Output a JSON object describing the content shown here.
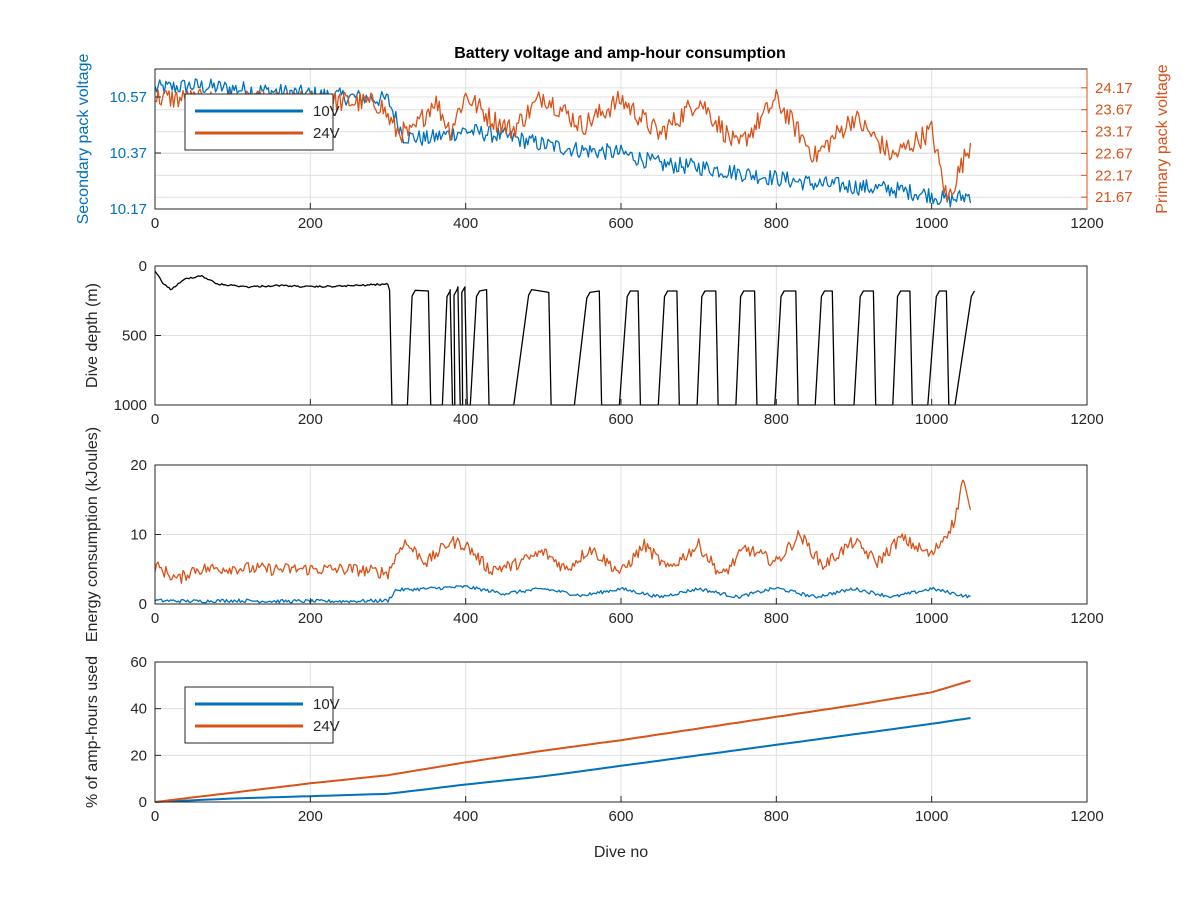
{
  "figure": {
    "title": "Battery voltage and amp-hour consumption",
    "colors": {
      "series_10v": "#0072BD",
      "series_24v": "#D95319",
      "depth": "#000000",
      "grid": "#e0e0e0",
      "axis": "#262626"
    }
  },
  "chart_data": [
    {
      "type": "line",
      "title": "Battery voltage and amp-hour consumption",
      "xlabel": "",
      "ylabel": "Secondary pack voltage",
      "ylabel_right": "Primary pack voltage",
      "xlim": [
        0,
        1200
      ],
      "xticks": [
        "0",
        "200",
        "400",
        "600",
        "800",
        "1000",
        "1200"
      ],
      "ylim": [
        10.17,
        10.67
      ],
      "yticks": [
        "10.17",
        "10.37",
        "10.57"
      ],
      "ylim_right": [
        21.4,
        24.6
      ],
      "yticks_right": [
        "21.67",
        "22.17",
        "22.67",
        "23.17",
        "23.67",
        "24.17"
      ],
      "grid": true,
      "legend": {
        "placement": "top-left",
        "entries": [
          "10V",
          "24V"
        ]
      },
      "series": [
        {
          "name": "10V",
          "axis": "left",
          "color": "#0072BD",
          "x": [
            0,
            50,
            100,
            150,
            200,
            250,
            300,
            320,
            350,
            400,
            450,
            500,
            550,
            600,
            650,
            700,
            750,
            800,
            850,
            900,
            950,
            1000,
            1020,
            1050
          ],
          "y": [
            10.6,
            10.61,
            10.6,
            10.59,
            10.58,
            10.57,
            10.56,
            10.43,
            10.42,
            10.45,
            10.43,
            10.4,
            10.38,
            10.37,
            10.33,
            10.32,
            10.3,
            10.28,
            10.26,
            10.25,
            10.24,
            10.22,
            10.2,
            10.22
          ]
        },
        {
          "name": "24V",
          "axis": "right",
          "color": "#D95319",
          "x": [
            0,
            50,
            100,
            150,
            200,
            250,
            290,
            310,
            330,
            360,
            380,
            400,
            430,
            460,
            500,
            550,
            600,
            650,
            700,
            750,
            800,
            850,
            900,
            950,
            1000,
            1020,
            1050
          ],
          "y": [
            23.95,
            23.9,
            23.85,
            23.85,
            23.85,
            23.85,
            23.8,
            23.2,
            23.1,
            23.9,
            23.2,
            24.0,
            23.5,
            23.2,
            24.0,
            23.3,
            23.9,
            23.1,
            23.9,
            22.8,
            23.9,
            22.6,
            23.5,
            22.6,
            23.2,
            21.6,
            22.9
          ]
        }
      ]
    },
    {
      "type": "line",
      "title": "",
      "xlabel": "",
      "ylabel": "Dive depth (m)",
      "xlim": [
        0,
        1200
      ],
      "xticks": [
        "0",
        "200",
        "400",
        "600",
        "800",
        "1000",
        "1200"
      ],
      "ylim": [
        0,
        1000
      ],
      "y_reversed": true,
      "yticks": [
        "0",
        "500",
        "1000"
      ],
      "grid": true,
      "series": [
        {
          "name": "",
          "color": "#000000",
          "dive_profile": {
            "shallow_x": [
              0,
              10,
              20,
              40,
              60,
              80,
              120,
              160,
              200,
              240,
              280,
              300
            ],
            "shallow_y": [
              40,
              120,
              170,
              90,
              70,
              130,
              150,
              140,
              150,
              145,
              135,
              130
            ],
            "dives": [
              {
                "down": 305,
                "bottom_end": 325,
                "surface": 175,
                "up": 335
              },
              {
                "down": 355,
                "bottom_end": 370,
                "surface": 180,
                "up": 380
              },
              {
                "down": 383,
                "bottom_end": 386,
                "surface": 170,
                "up": 389
              },
              {
                "down": 393,
                "bottom_end": 396,
                "surface": 150,
                "up": 399
              },
              {
                "down": 402,
                "bottom_end": 406,
                "surface": 180,
                "up": 418
              },
              {
                "down": 430,
                "bottom_end": 462,
                "surface": 170,
                "up": 485
              },
              {
                "down": 510,
                "bottom_end": 540,
                "surface": 190,
                "up": 560
              },
              {
                "down": 575,
                "bottom_end": 598,
                "surface": 180,
                "up": 612
              },
              {
                "down": 625,
                "bottom_end": 648,
                "surface": 180,
                "up": 660
              },
              {
                "down": 675,
                "bottom_end": 698,
                "surface": 180,
                "up": 708
              },
              {
                "down": 725,
                "bottom_end": 748,
                "surface": 180,
                "up": 758
              },
              {
                "down": 775,
                "bottom_end": 798,
                "surface": 180,
                "up": 810
              },
              {
                "down": 828,
                "bottom_end": 850,
                "surface": 180,
                "up": 862
              },
              {
                "down": 875,
                "bottom_end": 900,
                "surface": 180,
                "up": 912
              },
              {
                "down": 928,
                "bottom_end": 950,
                "surface": 180,
                "up": 960
              },
              {
                "down": 975,
                "bottom_end": 995,
                "surface": 180,
                "up": 1010
              },
              {
                "down": 1022,
                "bottom_end": 1030,
                "surface": 180,
                "up": 1055
              }
            ],
            "final_x": 1055,
            "final_y": 180
          }
        }
      ]
    },
    {
      "type": "line",
      "title": "",
      "xlabel": "",
      "ylabel": "Energy consumption (kJoules)",
      "xlim": [
        0,
        1200
      ],
      "xticks": [
        "0",
        "200",
        "400",
        "600",
        "800",
        "1000",
        "1200"
      ],
      "ylim": [
        0,
        20
      ],
      "yticks": [
        "0",
        "10",
        "20"
      ],
      "grid": true,
      "series": [
        {
          "name": "10V",
          "color": "#0072BD",
          "x": [
            0,
            50,
            100,
            150,
            200,
            250,
            300,
            310,
            350,
            400,
            450,
            500,
            550,
            600,
            650,
            700,
            750,
            800,
            850,
            900,
            950,
            1000,
            1050
          ],
          "y": [
            0.5,
            0.4,
            0.5,
            0.4,
            0.4,
            0.4,
            0.5,
            2.0,
            2.2,
            2.5,
            1.5,
            2.2,
            1.2,
            2.2,
            1.0,
            2.2,
            1.0,
            2.3,
            1.0,
            2.2,
            1.0,
            2.2,
            1.0
          ]
        },
        {
          "name": "24V",
          "color": "#D95319",
          "x": [
            0,
            30,
            50,
            100,
            150,
            200,
            230,
            250,
            300,
            320,
            350,
            380,
            400,
            430,
            460,
            500,
            530,
            560,
            600,
            630,
            660,
            700,
            730,
            760,
            800,
            830,
            860,
            900,
            930,
            960,
            1000,
            1030,
            1040,
            1050
          ],
          "y": [
            5.5,
            3.5,
            5.0,
            5.2,
            5.0,
            5.0,
            5.0,
            5.0,
            4.5,
            9.0,
            6.0,
            9.0,
            8.5,
            5.0,
            5.5,
            7.5,
            5.0,
            8.0,
            4.5,
            8.5,
            5.0,
            8.5,
            4.0,
            8.0,
            6.0,
            10.0,
            5.5,
            9.0,
            6.0,
            9.5,
            7.0,
            12.0,
            18.0,
            13.0
          ]
        }
      ]
    },
    {
      "type": "line",
      "title": "",
      "xlabel": "Dive no",
      "ylabel": "% of amp-hours used",
      "xlim": [
        0,
        1200
      ],
      "xticks": [
        "0",
        "200",
        "400",
        "600",
        "800",
        "1000",
        "1200"
      ],
      "ylim": [
        0,
        60
      ],
      "yticks": [
        "0",
        "20",
        "40",
        "60"
      ],
      "grid": true,
      "legend": {
        "placement": "top-left",
        "entries": [
          "10V",
          "24V"
        ]
      },
      "series": [
        {
          "name": "10V",
          "color": "#0072BD",
          "x": [
            0,
            100,
            200,
            300,
            400,
            500,
            600,
            700,
            800,
            900,
            1000,
            1050
          ],
          "y": [
            0,
            1.5,
            2.5,
            3.5,
            7.5,
            11,
            15.5,
            20,
            24.5,
            29,
            33.5,
            36
          ]
        },
        {
          "name": "24V",
          "color": "#D95319",
          "x": [
            0,
            100,
            200,
            300,
            400,
            500,
            600,
            700,
            800,
            900,
            1000,
            1050
          ],
          "y": [
            0,
            4,
            8,
            11.5,
            17,
            22,
            26.5,
            31.5,
            36.5,
            41.5,
            47,
            52
          ]
        }
      ]
    }
  ]
}
